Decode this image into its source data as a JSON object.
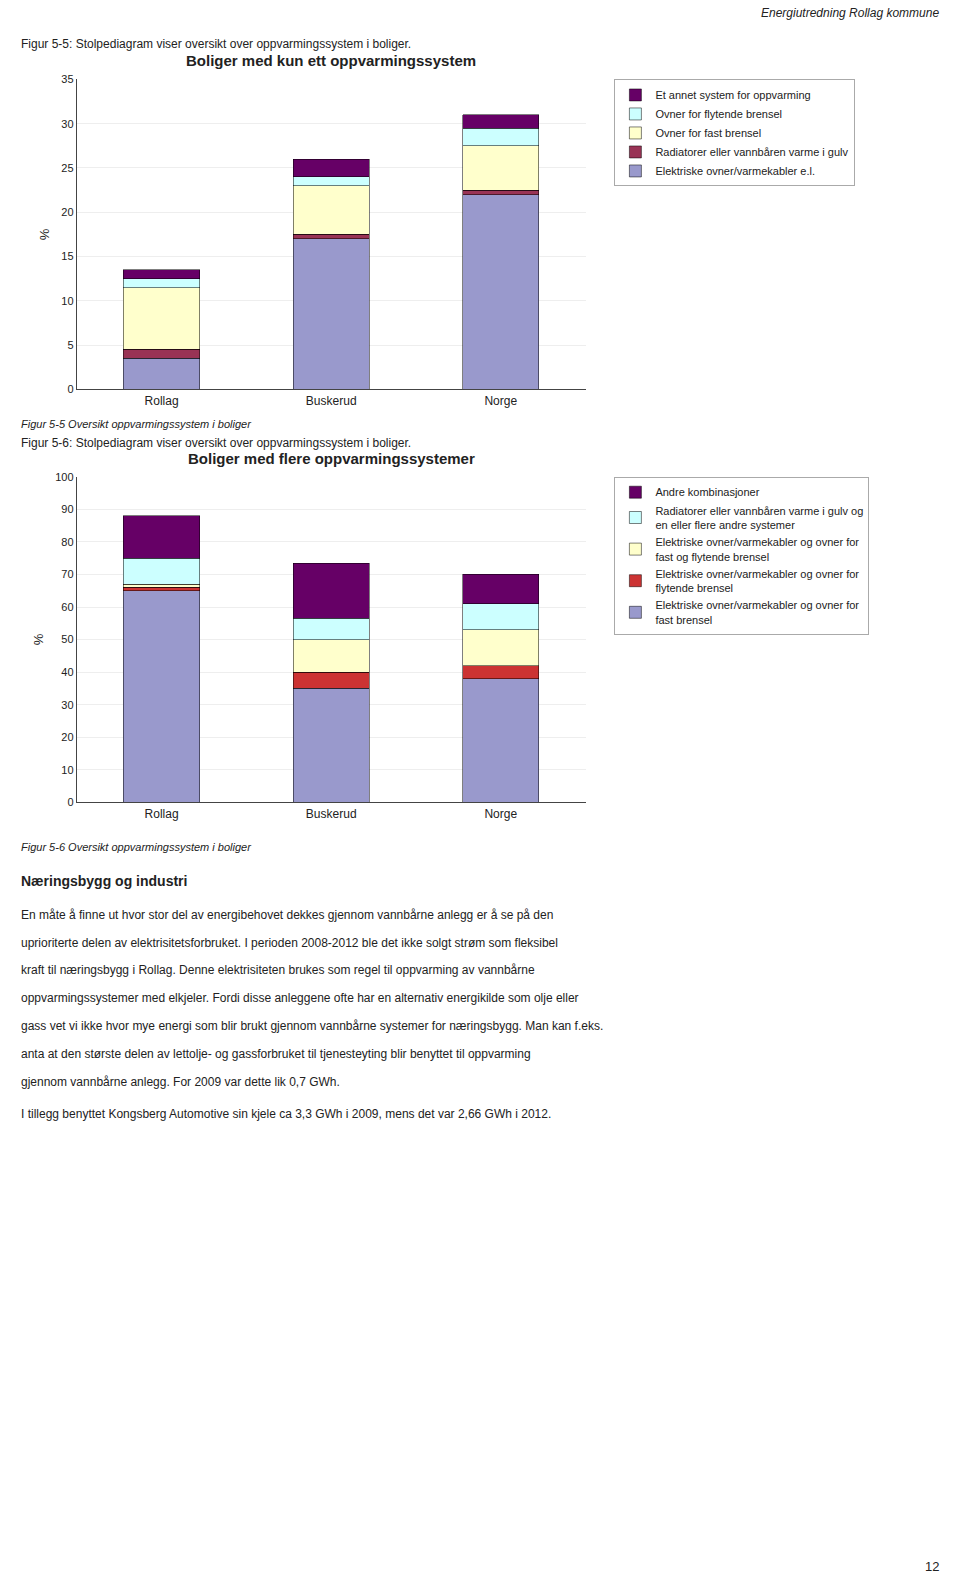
{
  "header": "Energiutredning Rollag kommune",
  "section_title": "Næringsbygg og industri",
  "paragraph": "En måte å finne ut hvor stor del av energibehovet dekkes gjennom vannbårne anlegg er å se på den uprioriterte delen av elektrisitetsforbruket. I perioden 2008-2012 ble det ikke solgt strøm som fleksibel kraft til næringsbygg i Rollag. Denne elektrisiteten brukes som regel til oppvarming av vannbårne oppvarmingssystemer med elkjeler. Fordi disse anleggene ofte har en alternativ energikilde som olje eller gass vet vi ikke hvor mye energi som blir brukt gjennom vannbårne systemer for næringsbygg. Man kan f.eks. anta at den største delen av lettolje- og gassforbruket til tjenesteyting blir benyttet til oppvarming gjennom vannbårne anlegg. For 2009 var dette lik 0,7 GWh.\nI tillegg benyttet Kongsberg Automotive sin kjele ca 3,3 GWh i 2009, mens det var 2,66 GWh i 2012.",
  "page_number": "12",
  "chart_data": [
    {
      "type": "bar",
      "title": "Boliger med kun ett oppvarmingssystem",
      "subtitle": "Figur 5-5: Stolpediagram viser oversikt over oppvarmingssystem i boliger.",
      "annotations": [
        "Figur 5-5 Oversikt oppvarmingssystem i boliger"
      ],
      "categories": [
        "Rollag",
        "Buskerud",
        "Norge"
      ],
      "ylabel": "%",
      "ylim": [
        0,
        35
      ],
      "yticks": [
        0,
        5,
        10,
        15,
        20,
        25,
        30,
        35
      ],
      "stacked": true,
      "grid": true,
      "legend": "right",
      "series": [
        {
          "name": "Elektriske ovner/varmekabler e.l.",
          "color": "#9999CC",
          "values": [
            3.5,
            17.0,
            22.0
          ]
        },
        {
          "name": "Radiatorer eller vannbåren varme i gulv",
          "color": "#993355",
          "values": [
            1.0,
            0.5,
            0.5
          ]
        },
        {
          "name": "Ovner for fast brensel",
          "color": "#FFFFCC",
          "values": [
            7.0,
            5.5,
            5.0
          ]
        },
        {
          "name": "Ovner for flytende brensel",
          "color": "#CCFFFF",
          "values": [
            1.0,
            1.0,
            2.0
          ]
        },
        {
          "name": "Et annet system for oppvarming",
          "color": "#660066",
          "values": [
            1.0,
            2.0,
            1.5
          ]
        }
      ]
    },
    {
      "type": "bar",
      "title": "Boliger med flere oppvarmingssystemer",
      "subtitle": "Figur 5-6: Stolpediagram viser oversikt over oppvarmingssystem i boliger.",
      "annotations": [
        "Figur 5-6 Oversikt oppvarmingssystem i boliger"
      ],
      "categories": [
        "Rollag",
        "Buskerud",
        "Norge"
      ],
      "ylabel": "%",
      "ylim": [
        0,
        100
      ],
      "yticks": [
        0,
        10,
        20,
        30,
        40,
        50,
        60,
        70,
        80,
        90,
        100
      ],
      "stacked": true,
      "grid": true,
      "legend": "right",
      "series": [
        {
          "name": "Elektriske ovner/varmekabler og ovner for fast brensel",
          "color": "#9999CC",
          "values": [
            65.0,
            35.0,
            38.0
          ]
        },
        {
          "name": "Elektriske ovner/varmekabler og ovner for flytende brensel",
          "color": "#CC3333",
          "values": [
            1.0,
            5.0,
            4.0
          ]
        },
        {
          "name": "Elektriske ovner/varmekabler og ovner for fast og flytende brensel",
          "color": "#FFFFCC",
          "values": [
            1.0,
            10.0,
            11.0
          ]
        },
        {
          "name": "Radiatorer eller vannbåren varme i gulv og en eller flere andre systemer",
          "color": "#CCFFFF",
          "values": [
            8.0,
            6.5,
            8.0
          ]
        },
        {
          "name": "Andre kombinasjoner",
          "color": "#660066",
          "values": [
            13.0,
            17.0,
            9.0
          ]
        }
      ]
    }
  ]
}
